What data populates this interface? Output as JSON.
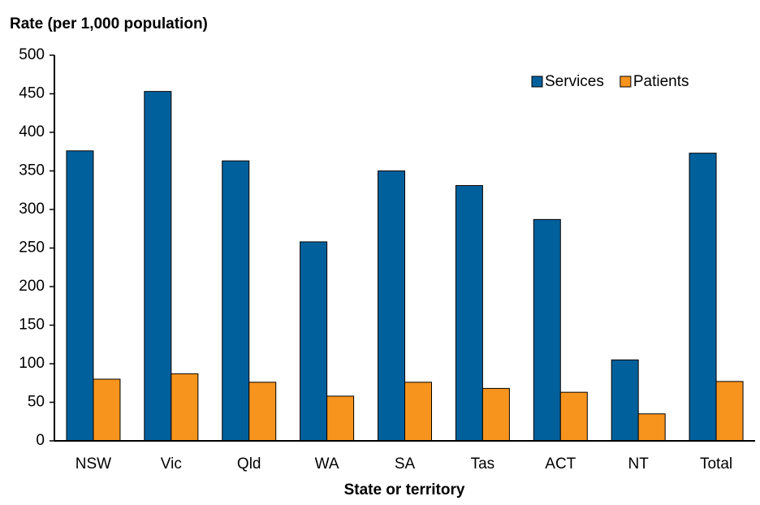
{
  "chart_data": {
    "type": "bar",
    "title": "Rate (per 1,000 population)",
    "x_label": "State or territory",
    "categories": [
      "NSW",
      "Vic",
      "Qld",
      "WA",
      "SA",
      "Tas",
      "ACT",
      "NT",
      "Total"
    ],
    "series": [
      {
        "name": "Services",
        "color": "#00609c",
        "values": [
          376,
          453,
          363,
          258,
          350,
          331,
          287,
          105,
          373
        ]
      },
      {
        "name": "Patients",
        "color": "#f7941d",
        "values": [
          80,
          87,
          76,
          58,
          76,
          68,
          63,
          35,
          77
        ]
      }
    ],
    "ylim": [
      0,
      500
    ],
    "yticks": [
      0,
      50,
      100,
      150,
      200,
      250,
      300,
      350,
      400,
      450,
      500
    ],
    "grid": false,
    "legend": "top-right"
  }
}
